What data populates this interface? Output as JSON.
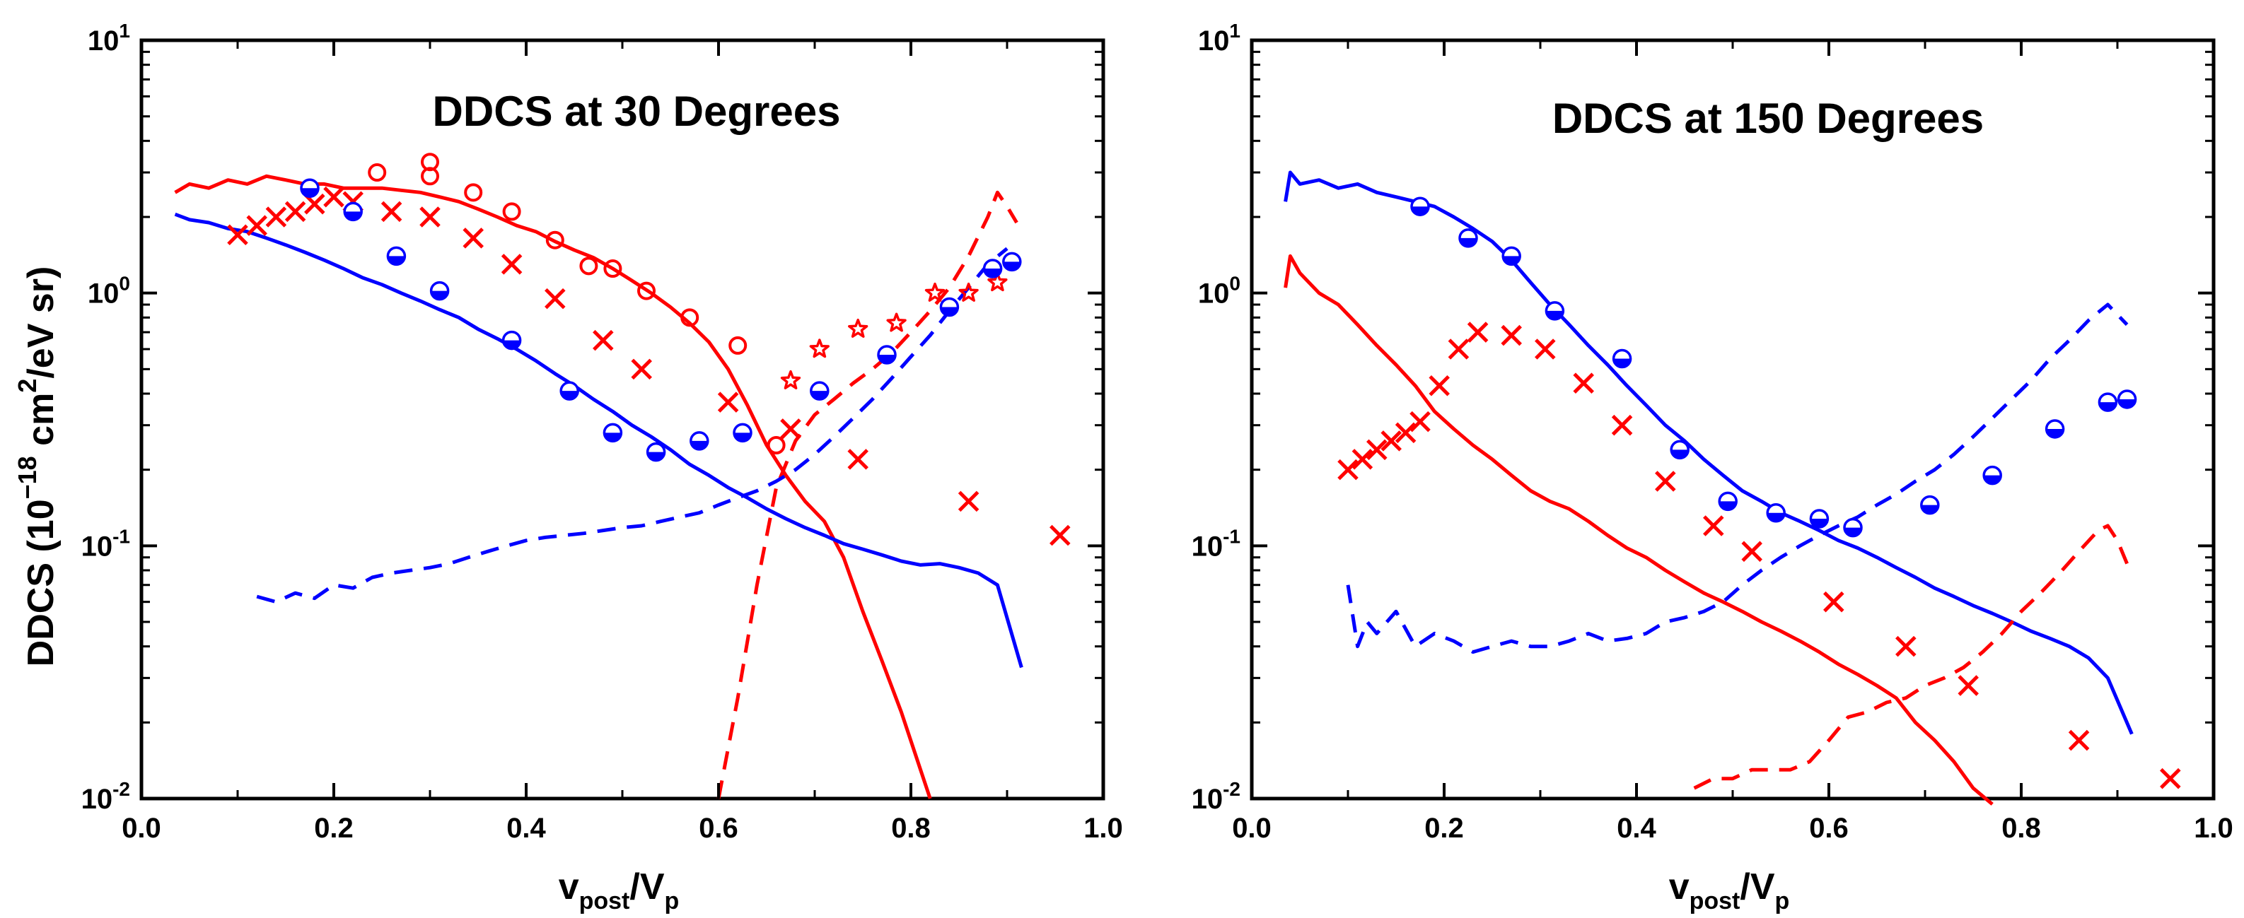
{
  "chart_data": [
    {
      "type": "line",
      "title": "DDCS at 30 Degrees",
      "xlabel": {
        "main": "v",
        "sub1": "post",
        "mid": "/V",
        "sub2": "p"
      },
      "ylabel": {
        "pre": "DDCS (10",
        "exp1": "−18",
        "mid": " cm",
        "exp2": "2",
        "post": "/eV sr)"
      },
      "xlim": [
        0.0,
        1.0
      ],
      "ylim": [
        0.01,
        10
      ],
      "yscale": "log",
      "x_ticks": [
        "0.0",
        "0.2",
        "0.4",
        "0.6",
        "0.8",
        "1.0"
      ],
      "y_ticks": [
        {
          "value": 0.01,
          "mantissa": "10",
          "exp": "-2"
        },
        {
          "value": 0.1,
          "mantissa": "10",
          "exp": "-1"
        },
        {
          "value": 1,
          "mantissa": "10",
          "exp": "0"
        },
        {
          "value": 10,
          "mantissa": "10",
          "exp": "1"
        }
      ],
      "grid": false,
      "series": [
        {
          "kind": "line",
          "dash": "solid",
          "color": "#ff0000",
          "x": [
            0.035,
            0.05,
            0.07,
            0.09,
            0.11,
            0.13,
            0.15,
            0.17,
            0.19,
            0.21,
            0.23,
            0.25,
            0.27,
            0.29,
            0.31,
            0.33,
            0.35,
            0.37,
            0.39,
            0.41,
            0.43,
            0.45,
            0.47,
            0.49,
            0.51,
            0.53,
            0.55,
            0.57,
            0.59,
            0.61,
            0.63,
            0.65,
            0.67,
            0.69,
            0.71,
            0.73,
            0.75,
            0.77,
            0.79,
            0.81,
            0.82
          ],
          "y": [
            2.5,
            2.7,
            2.6,
            2.8,
            2.7,
            2.9,
            2.8,
            2.7,
            2.7,
            2.6,
            2.6,
            2.6,
            2.55,
            2.5,
            2.4,
            2.3,
            2.15,
            2.0,
            1.85,
            1.75,
            1.6,
            1.48,
            1.38,
            1.25,
            1.12,
            1.0,
            0.88,
            0.76,
            0.64,
            0.5,
            0.36,
            0.25,
            0.19,
            0.15,
            0.125,
            0.09,
            0.055,
            0.035,
            0.022,
            0.013,
            0.01
          ]
        },
        {
          "kind": "line",
          "dash": "solid",
          "color": "#0000ff",
          "x": [
            0.035,
            0.05,
            0.07,
            0.09,
            0.11,
            0.13,
            0.15,
            0.17,
            0.19,
            0.21,
            0.23,
            0.25,
            0.27,
            0.29,
            0.31,
            0.33,
            0.35,
            0.37,
            0.39,
            0.41,
            0.43,
            0.45,
            0.47,
            0.49,
            0.51,
            0.53,
            0.55,
            0.57,
            0.59,
            0.61,
            0.63,
            0.65,
            0.67,
            0.69,
            0.71,
            0.73,
            0.75,
            0.77,
            0.79,
            0.81,
            0.83,
            0.85,
            0.87,
            0.89,
            0.915
          ],
          "y": [
            2.05,
            1.95,
            1.9,
            1.8,
            1.75,
            1.65,
            1.55,
            1.45,
            1.35,
            1.25,
            1.15,
            1.08,
            1.0,
            0.93,
            0.86,
            0.8,
            0.72,
            0.66,
            0.6,
            0.54,
            0.48,
            0.43,
            0.38,
            0.34,
            0.3,
            0.27,
            0.24,
            0.21,
            0.19,
            0.17,
            0.155,
            0.14,
            0.128,
            0.118,
            0.11,
            0.102,
            0.097,
            0.092,
            0.087,
            0.084,
            0.085,
            0.082,
            0.078,
            0.07,
            0.033
          ]
        },
        {
          "kind": "line",
          "dash": "dashed",
          "color": "#ff0000",
          "x": [
            0.6,
            0.62,
            0.64,
            0.66,
            0.68,
            0.7,
            0.72,
            0.74,
            0.76,
            0.78,
            0.8,
            0.82,
            0.84,
            0.86,
            0.88,
            0.89,
            0.9,
            0.91
          ],
          "y": [
            0.01,
            0.025,
            0.07,
            0.17,
            0.26,
            0.33,
            0.38,
            0.44,
            0.5,
            0.58,
            0.7,
            0.85,
            1.05,
            1.4,
            2.0,
            2.5,
            2.2,
            1.9
          ]
        },
        {
          "kind": "line",
          "dash": "dashed",
          "color": "#0000ff",
          "x": [
            0.12,
            0.14,
            0.16,
            0.18,
            0.2,
            0.22,
            0.24,
            0.26,
            0.28,
            0.3,
            0.32,
            0.34,
            0.36,
            0.38,
            0.4,
            0.42,
            0.44,
            0.46,
            0.48,
            0.5,
            0.52,
            0.54,
            0.56,
            0.58,
            0.6,
            0.62,
            0.64,
            0.66,
            0.68,
            0.7,
            0.72,
            0.74,
            0.76,
            0.78,
            0.8,
            0.82,
            0.84,
            0.86,
            0.88,
            0.9
          ],
          "y": [
            0.063,
            0.06,
            0.065,
            0.062,
            0.07,
            0.068,
            0.075,
            0.078,
            0.08,
            0.082,
            0.085,
            0.09,
            0.095,
            0.1,
            0.105,
            0.108,
            0.11,
            0.112,
            0.115,
            0.118,
            0.12,
            0.125,
            0.13,
            0.135,
            0.145,
            0.155,
            0.165,
            0.18,
            0.2,
            0.23,
            0.27,
            0.32,
            0.38,
            0.46,
            0.56,
            0.68,
            0.85,
            1.05,
            1.3,
            1.5
          ]
        }
      ],
      "markers": [
        {
          "kind": "x",
          "color": "#ff0000",
          "x": [
            0.1,
            0.12,
            0.14,
            0.16,
            0.18,
            0.2,
            0.22,
            0.26,
            0.3,
            0.345,
            0.385,
            0.43,
            0.48,
            0.52,
            0.61,
            0.675,
            0.745,
            0.86,
            0.955
          ],
          "y": [
            1.7,
            1.85,
            2.0,
            2.1,
            2.25,
            2.4,
            2.3,
            2.1,
            2.0,
            1.65,
            1.3,
            0.95,
            0.65,
            0.5,
            0.37,
            0.29,
            0.22,
            0.15,
            0.11
          ]
        },
        {
          "kind": "circle",
          "color": "#ff0000",
          "x": [
            0.245,
            0.3,
            0.3,
            0.345,
            0.385,
            0.43,
            0.465,
            0.49,
            0.525,
            0.57,
            0.62,
            0.66
          ],
          "y": [
            3.0,
            3.3,
            2.9,
            2.5,
            2.1,
            1.62,
            1.28,
            1.25,
            1.02,
            0.8,
            0.62,
            0.25
          ]
        },
        {
          "kind": "star",
          "color": "#ff0000",
          "x": [
            0.675,
            0.705,
            0.745,
            0.785,
            0.825,
            0.86,
            0.89
          ],
          "y": [
            0.45,
            0.6,
            0.72,
            0.76,
            1.0,
            1.0,
            1.1
          ]
        },
        {
          "kind": "halfcircle",
          "color": "#0000ff",
          "x": [
            0.175,
            0.22,
            0.265,
            0.31,
            0.385,
            0.445,
            0.49,
            0.535,
            0.58,
            0.625,
            0.705,
            0.775,
            0.84,
            0.885,
            0.905
          ],
          "y": [
            2.6,
            2.1,
            1.4,
            1.02,
            0.65,
            0.41,
            0.28,
            0.235,
            0.26,
            0.28,
            0.41,
            0.57,
            0.88,
            1.25,
            1.33
          ]
        }
      ]
    },
    {
      "type": "line",
      "title": "DDCS at 150 Degrees",
      "xlabel": {
        "main": "v",
        "sub1": "post",
        "mid": "/V",
        "sub2": "p"
      },
      "xlim": [
        0.0,
        1.0
      ],
      "ylim": [
        0.01,
        10
      ],
      "yscale": "log",
      "x_ticks": [
        "0.0",
        "0.2",
        "0.4",
        "0.6",
        "0.8",
        "1.0"
      ],
      "y_ticks": [
        {
          "value": 0.01,
          "mantissa": "10",
          "exp": "-2"
        },
        {
          "value": 0.1,
          "mantissa": "10",
          "exp": "-1"
        },
        {
          "value": 1,
          "mantissa": "10",
          "exp": "0"
        },
        {
          "value": 10,
          "mantissa": "10",
          "exp": "1"
        }
      ],
      "grid": false,
      "series": [
        {
          "kind": "line",
          "dash": "solid",
          "color": "#0000ff",
          "x": [
            0.035,
            0.04,
            0.05,
            0.07,
            0.09,
            0.11,
            0.13,
            0.15,
            0.17,
            0.19,
            0.21,
            0.23,
            0.25,
            0.27,
            0.29,
            0.31,
            0.33,
            0.35,
            0.37,
            0.39,
            0.41,
            0.43,
            0.45,
            0.47,
            0.49,
            0.51,
            0.53,
            0.55,
            0.57,
            0.59,
            0.61,
            0.63,
            0.65,
            0.67,
            0.69,
            0.71,
            0.73,
            0.75,
            0.77,
            0.79,
            0.81,
            0.83,
            0.85,
            0.87,
            0.89,
            0.915
          ],
          "y": [
            2.3,
            3.0,
            2.7,
            2.8,
            2.6,
            2.7,
            2.5,
            2.4,
            2.3,
            2.2,
            2.0,
            1.8,
            1.6,
            1.35,
            1.1,
            0.9,
            0.75,
            0.62,
            0.52,
            0.43,
            0.36,
            0.3,
            0.26,
            0.22,
            0.19,
            0.165,
            0.15,
            0.135,
            0.125,
            0.115,
            0.105,
            0.098,
            0.09,
            0.082,
            0.075,
            0.068,
            0.063,
            0.058,
            0.054,
            0.05,
            0.046,
            0.043,
            0.04,
            0.036,
            0.03,
            0.018
          ]
        },
        {
          "kind": "line",
          "dash": "solid",
          "color": "#ff0000",
          "x": [
            0.035,
            0.04,
            0.05,
            0.07,
            0.09,
            0.11,
            0.13,
            0.15,
            0.17,
            0.19,
            0.21,
            0.23,
            0.25,
            0.27,
            0.29,
            0.31,
            0.33,
            0.35,
            0.37,
            0.39,
            0.41,
            0.43,
            0.45,
            0.47,
            0.49,
            0.51,
            0.53,
            0.55,
            0.57,
            0.59,
            0.61,
            0.63,
            0.65,
            0.67,
            0.69,
            0.71,
            0.73,
            0.75,
            0.77
          ],
          "y": [
            1.05,
            1.4,
            1.2,
            1.0,
            0.9,
            0.75,
            0.62,
            0.52,
            0.43,
            0.34,
            0.29,
            0.25,
            0.22,
            0.19,
            0.165,
            0.15,
            0.14,
            0.125,
            0.11,
            0.098,
            0.09,
            0.08,
            0.072,
            0.065,
            0.06,
            0.055,
            0.05,
            0.046,
            0.042,
            0.038,
            0.034,
            0.031,
            0.028,
            0.025,
            0.02,
            0.017,
            0.014,
            0.011,
            0.0095
          ]
        },
        {
          "kind": "line",
          "dash": "dashed",
          "color": "#0000ff",
          "x": [
            0.1,
            0.11,
            0.12,
            0.13,
            0.15,
            0.17,
            0.19,
            0.21,
            0.23,
            0.25,
            0.27,
            0.29,
            0.31,
            0.33,
            0.35,
            0.37,
            0.39,
            0.41,
            0.43,
            0.45,
            0.47,
            0.49,
            0.51,
            0.53,
            0.55,
            0.57,
            0.59,
            0.61,
            0.63,
            0.65,
            0.67,
            0.69,
            0.71,
            0.73,
            0.75,
            0.77,
            0.79,
            0.81,
            0.83,
            0.85,
            0.87,
            0.89,
            0.91
          ],
          "y": [
            0.07,
            0.04,
            0.05,
            0.045,
            0.055,
            0.04,
            0.045,
            0.042,
            0.038,
            0.04,
            0.042,
            0.04,
            0.04,
            0.042,
            0.045,
            0.042,
            0.043,
            0.045,
            0.05,
            0.052,
            0.055,
            0.06,
            0.07,
            0.08,
            0.09,
            0.1,
            0.11,
            0.12,
            0.13,
            0.145,
            0.16,
            0.18,
            0.2,
            0.23,
            0.27,
            0.32,
            0.38,
            0.45,
            0.55,
            0.65,
            0.78,
            0.9,
            0.75
          ]
        },
        {
          "kind": "line",
          "dash": "dashed",
          "color": "#ff0000",
          "x": [
            0.46,
            0.48,
            0.5,
            0.52,
            0.54,
            0.56,
            0.58,
            0.6,
            0.62,
            0.64,
            0.66,
            0.68,
            0.7,
            0.72,
            0.74,
            0.76,
            0.78,
            0.8,
            0.82,
            0.84,
            0.86,
            0.88,
            0.89,
            0.9,
            0.91
          ],
          "y": [
            0.011,
            0.012,
            0.012,
            0.013,
            0.013,
            0.013,
            0.014,
            0.017,
            0.021,
            0.022,
            0.024,
            0.025,
            0.028,
            0.03,
            0.033,
            0.038,
            0.045,
            0.055,
            0.065,
            0.078,
            0.095,
            0.115,
            0.12,
            0.105,
            0.085
          ]
        }
      ],
      "markers": [
        {
          "kind": "x",
          "color": "#ff0000",
          "x": [
            0.1,
            0.115,
            0.13,
            0.145,
            0.16,
            0.175,
            0.195,
            0.215,
            0.235,
            0.27,
            0.305,
            0.345,
            0.385,
            0.43,
            0.48,
            0.52,
            0.605,
            0.68,
            0.745,
            0.86,
            0.955
          ],
          "y": [
            0.2,
            0.22,
            0.24,
            0.26,
            0.28,
            0.31,
            0.43,
            0.6,
            0.7,
            0.68,
            0.6,
            0.44,
            0.3,
            0.18,
            0.12,
            0.095,
            0.06,
            0.04,
            0.028,
            0.017,
            0.012
          ]
        },
        {
          "kind": "halfcircle",
          "color": "#0000ff",
          "x": [
            0.175,
            0.225,
            0.27,
            0.315,
            0.385,
            0.445,
            0.495,
            0.545,
            0.59,
            0.625,
            0.705,
            0.77,
            0.835,
            0.89,
            0.91
          ],
          "y": [
            2.2,
            1.65,
            1.4,
            0.85,
            0.55,
            0.24,
            0.15,
            0.135,
            0.128,
            0.118,
            0.145,
            0.19,
            0.29,
            0.37,
            0.38
          ]
        }
      ]
    }
  ]
}
